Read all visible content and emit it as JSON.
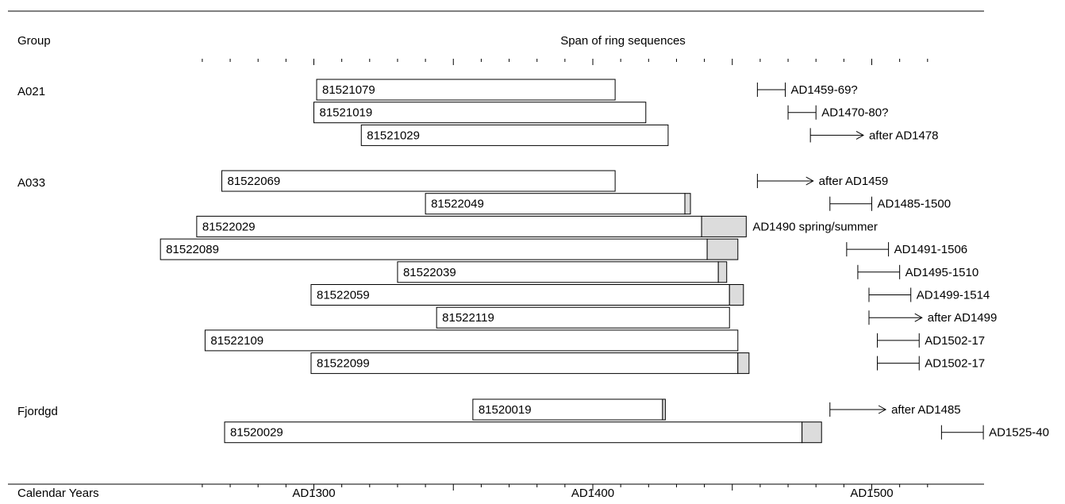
{
  "chart_data": {
    "type": "bar",
    "headers": {
      "group": "Group",
      "span": "Span of ring sequences",
      "axis_label": "Calendar Years"
    },
    "x_axis": {
      "range": [
        1255,
        1525
      ],
      "minor_tick_step": 10,
      "tick_labels": [
        {
          "year": 1300,
          "label": "AD1300"
        },
        {
          "year": 1400,
          "label": "AD1400"
        },
        {
          "year": 1500,
          "label": "AD1500"
        }
      ]
    },
    "groups": [
      {
        "name": "A021",
        "samples": [
          {
            "id": "81521079",
            "start": 1301,
            "heartwood_end": 1408,
            "sapwood_end": 1408,
            "felling_label": "AD1459-69?",
            "felling_type": "range",
            "felling_start": 1459,
            "felling_end": 1469
          },
          {
            "id": "81521019",
            "start": 1300,
            "heartwood_end": 1419,
            "sapwood_end": 1419,
            "felling_label": "AD1470-80?",
            "felling_type": "range",
            "felling_start": 1470,
            "felling_end": 1480
          },
          {
            "id": "81521029",
            "start": 1317,
            "heartwood_end": 1427,
            "sapwood_end": 1427,
            "felling_label": "after AD1478",
            "felling_type": "after",
            "felling_start": 1478,
            "felling_end": 1497
          }
        ]
      },
      {
        "name": "A033",
        "samples": [
          {
            "id": "81522069",
            "start": 1267,
            "heartwood_end": 1408,
            "sapwood_end": 1408,
            "felling_label": "after AD1459",
            "felling_type": "after",
            "felling_start": 1459,
            "felling_end": 1479
          },
          {
            "id": "81522049",
            "start": 1340,
            "heartwood_end": 1433,
            "sapwood_end": 1435,
            "felling_label": "AD1485-1500",
            "felling_type": "range",
            "felling_start": 1485,
            "felling_end": 1500
          },
          {
            "id": "81522029",
            "start": 1258,
            "heartwood_end": 1439,
            "sapwood_end": 1455,
            "felling_label": "AD1490 spring/summer",
            "felling_type": "none"
          },
          {
            "id": "81522089",
            "start": 1245,
            "heartwood_end": 1441,
            "sapwood_end": 1452,
            "felling_label": "AD1491-1506",
            "felling_type": "range",
            "felling_start": 1491,
            "felling_end": 1506
          },
          {
            "id": "81522039",
            "start": 1330,
            "heartwood_end": 1445,
            "sapwood_end": 1448,
            "felling_label": "AD1495-1510",
            "felling_type": "range",
            "felling_start": 1495,
            "felling_end": 1510
          },
          {
            "id": "81522059",
            "start": 1299,
            "heartwood_end": 1449,
            "sapwood_end": 1454,
            "felling_label": "AD1499-1514",
            "felling_type": "range",
            "felling_start": 1499,
            "felling_end": 1514
          },
          {
            "id": "81522119",
            "start": 1344,
            "heartwood_end": 1449,
            "sapwood_end": 1449,
            "felling_label": "after AD1499",
            "felling_type": "after",
            "felling_start": 1499,
            "felling_end": 1518
          },
          {
            "id": "81522109",
            "start": 1261,
            "heartwood_end": 1452,
            "sapwood_end": 1452,
            "felling_label": "AD1502-17",
            "felling_type": "range",
            "felling_start": 1502,
            "felling_end": 1517
          },
          {
            "id": "81522099",
            "start": 1299,
            "heartwood_end": 1452,
            "sapwood_end": 1456,
            "felling_label": "AD1502-17",
            "felling_type": "range",
            "felling_start": 1502,
            "felling_end": 1517
          }
        ]
      },
      {
        "name": "Fjordgd",
        "samples": [
          {
            "id": "81520019",
            "start": 1357,
            "heartwood_end": 1425,
            "sapwood_end": 1426,
            "felling_label": "after AD1485",
            "felling_type": "after",
            "felling_start": 1485,
            "felling_end": 1505
          },
          {
            "id": "81520029",
            "start": 1268,
            "heartwood_end": 1475,
            "sapwood_end": 1482,
            "felling_label": "AD1525-40",
            "felling_type": "range",
            "felling_start": 1525,
            "felling_end": 1540
          }
        ]
      }
    ]
  }
}
